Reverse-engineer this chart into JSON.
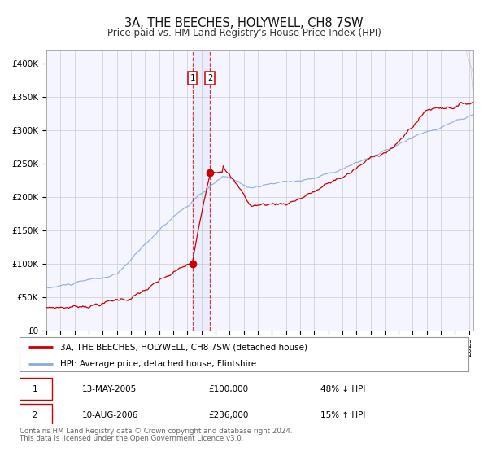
{
  "title": "3A, THE BEECHES, HOLYWELL, CH8 7SW",
  "subtitle": "Price paid vs. HM Land Registry's House Price Index (HPI)",
  "background_color": "#ffffff",
  "plot_bg_color": "#f5f5ff",
  "grid_color": "#cccccc",
  "hpi_color": "#88aadd",
  "price_color": "#cc0000",
  "sale1_date": 2005.37,
  "sale1_price": 100000,
  "sale2_date": 2006.61,
  "sale2_price": 236000,
  "legend_line1": "3A, THE BEECHES, HOLYWELL, CH8 7SW (detached house)",
  "legend_line2": "HPI: Average price, detached house, Flintshire",
  "table_row1": [
    "1",
    "13-MAY-2005",
    "£100,000",
    "48% ↓ HPI"
  ],
  "table_row2": [
    "2",
    "10-AUG-2006",
    "£236,000",
    "15% ↑ HPI"
  ],
  "footnote1": "Contains HM Land Registry data © Crown copyright and database right 2024.",
  "footnote2": "This data is licensed under the Open Government Licence v3.0.",
  "ylim": [
    0,
    420000
  ],
  "xlim_start": 1995.0,
  "xlim_end": 2025.3,
  "yticks": [
    0,
    50000,
    100000,
    150000,
    200000,
    250000,
    300000,
    350000,
    400000
  ],
  "ylabels": [
    "£0",
    "£50K",
    "£100K",
    "£150K",
    "£200K",
    "£250K",
    "£300K",
    "£350K",
    "£400K"
  ]
}
